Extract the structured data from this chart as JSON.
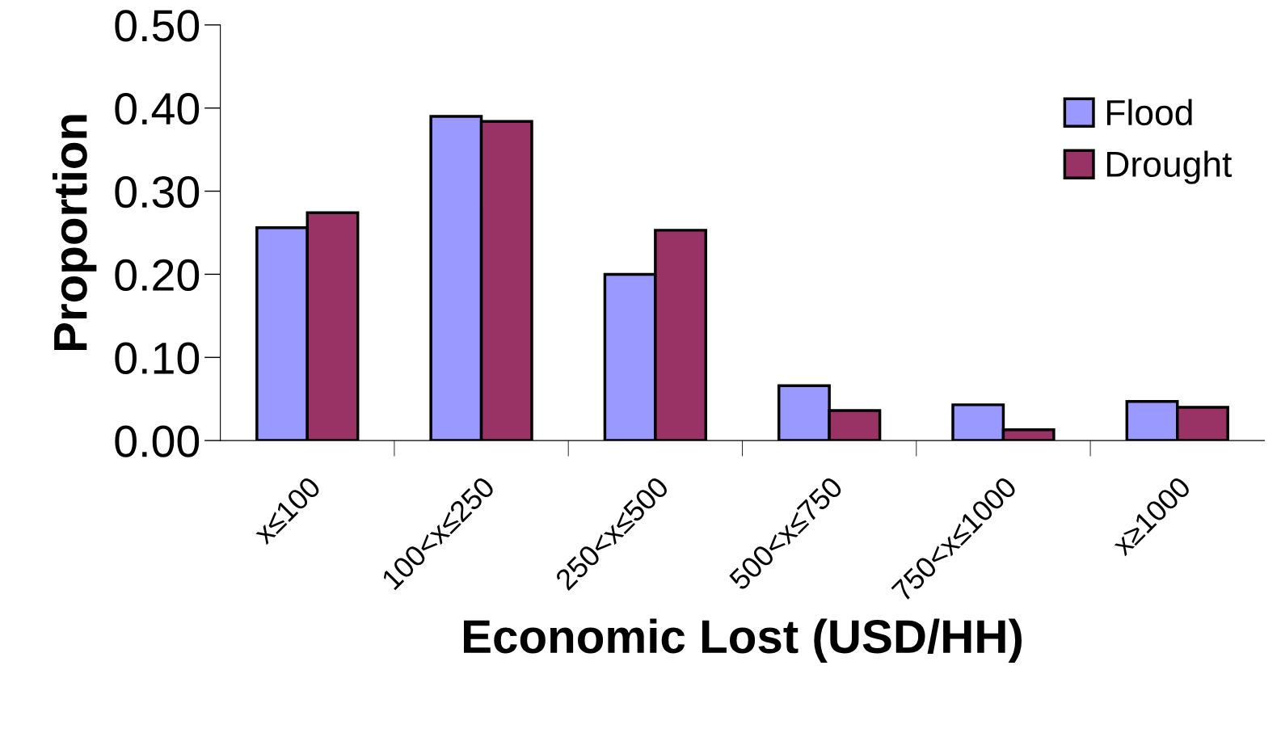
{
  "chart_data": {
    "type": "bar",
    "xlabel": "Economic Lost (USD/HH)",
    "ylabel": "Proportion",
    "categories": [
      "x≤100",
      "100<x≤250",
      "250<x≤500",
      "500<x≤750",
      "750<x≤1000",
      "x≥1000"
    ],
    "series": [
      {
        "name": "Flood",
        "color": "#9999ff",
        "values": [
          0.256,
          0.39,
          0.2,
          0.066,
          0.043,
          0.047
        ]
      },
      {
        "name": "Drought",
        "color": "#993366",
        "values": [
          0.274,
          0.384,
          0.253,
          0.036,
          0.013,
          0.04
        ]
      }
    ],
    "ylim": [
      0,
      0.5
    ],
    "yticks": [
      {
        "value": 0,
        "label": "0.00"
      },
      {
        "value": 0.1,
        "label": "0.10"
      },
      {
        "value": 0.2,
        "label": "0.20"
      },
      {
        "value": 0.3,
        "label": "0.30"
      },
      {
        "value": 0.4,
        "label": "0.40"
      },
      {
        "value": 0.5,
        "label": "0.50"
      }
    ],
    "grid": false,
    "legend": "top right"
  }
}
